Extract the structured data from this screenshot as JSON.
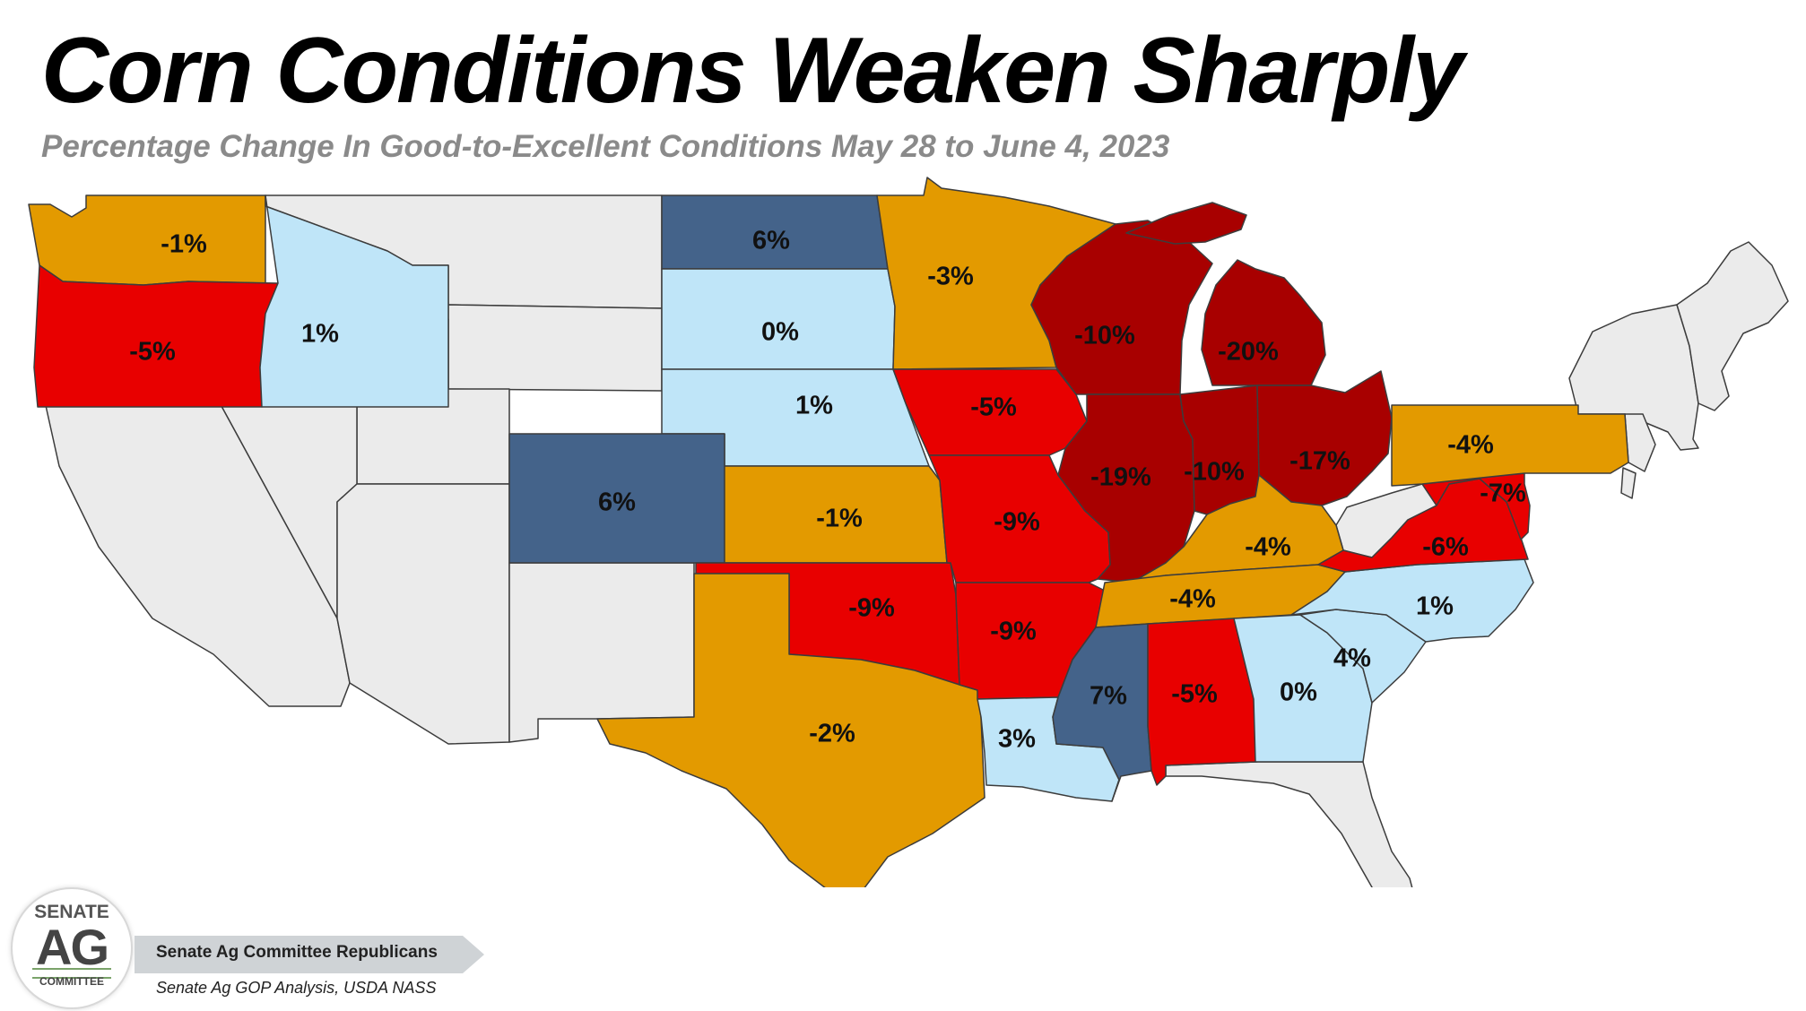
{
  "header": {
    "title": "Corn Conditions Weaken Sharply",
    "subtitle": "Percentage Change In Good-to-Excellent Conditions May 28 to June 4, 2023"
  },
  "colors": {
    "dark_blue": "#44638a",
    "light_blue": "#bfe5f8",
    "orange": "#e39a00",
    "red": "#e80000",
    "dark_red": "#a80000",
    "grey": "#ebebeb",
    "outline": "#3c3c3c"
  },
  "states": [
    {
      "id": "WA",
      "label": "-1%",
      "value": -1
    },
    {
      "id": "OR",
      "label": "-5%",
      "value": -5
    },
    {
      "id": "ID",
      "label": "1%",
      "value": 1
    },
    {
      "id": "ND",
      "label": "6%",
      "value": 6
    },
    {
      "id": "SD",
      "label": "0%",
      "value": 0
    },
    {
      "id": "NE",
      "label": "1%",
      "value": 1
    },
    {
      "id": "CO",
      "label": "6%",
      "value": 6
    },
    {
      "id": "KS",
      "label": "-1%",
      "value": -1
    },
    {
      "id": "OK",
      "label": "-9%",
      "value": -9
    },
    {
      "id": "TX",
      "label": "-2%",
      "value": -2
    },
    {
      "id": "MN",
      "label": "-3%",
      "value": -3
    },
    {
      "id": "IA",
      "label": "-5%",
      "value": -5
    },
    {
      "id": "MO",
      "label": "-9%",
      "value": -9
    },
    {
      "id": "AR",
      "label": "-9%",
      "value": -9
    },
    {
      "id": "LA",
      "label": "3%",
      "value": 3
    },
    {
      "id": "WI",
      "label": "-10%",
      "value": -10
    },
    {
      "id": "IL",
      "label": "-19%",
      "value": -19
    },
    {
      "id": "MI",
      "label": "-20%",
      "value": -20
    },
    {
      "id": "IN",
      "label": "-10%",
      "value": -10
    },
    {
      "id": "OH",
      "label": "-17%",
      "value": -17
    },
    {
      "id": "KY",
      "label": "-4%",
      "value": -4
    },
    {
      "id": "TN",
      "label": "-4%",
      "value": -4
    },
    {
      "id": "MS",
      "label": "7%",
      "value": 7
    },
    {
      "id": "AL",
      "label": "-5%",
      "value": -5
    },
    {
      "id": "GA",
      "label": "0%",
      "value": 0
    },
    {
      "id": "SC",
      "label": "4%",
      "value": 4
    },
    {
      "id": "NC",
      "label": "1%",
      "value": 1
    },
    {
      "id": "VA",
      "label": "-6%",
      "value": -6
    },
    {
      "id": "MD",
      "label": "-7%",
      "value": -7
    },
    {
      "id": "PA",
      "label": "-4%",
      "value": -4
    }
  ],
  "footer": {
    "logo_top": "SENATE",
    "logo_mid": "AG",
    "logo_bottom": "COMMITTEE",
    "organization": "Senate Ag Committee Republicans",
    "source": "Senate Ag GOP Analysis, USDA NASS"
  }
}
